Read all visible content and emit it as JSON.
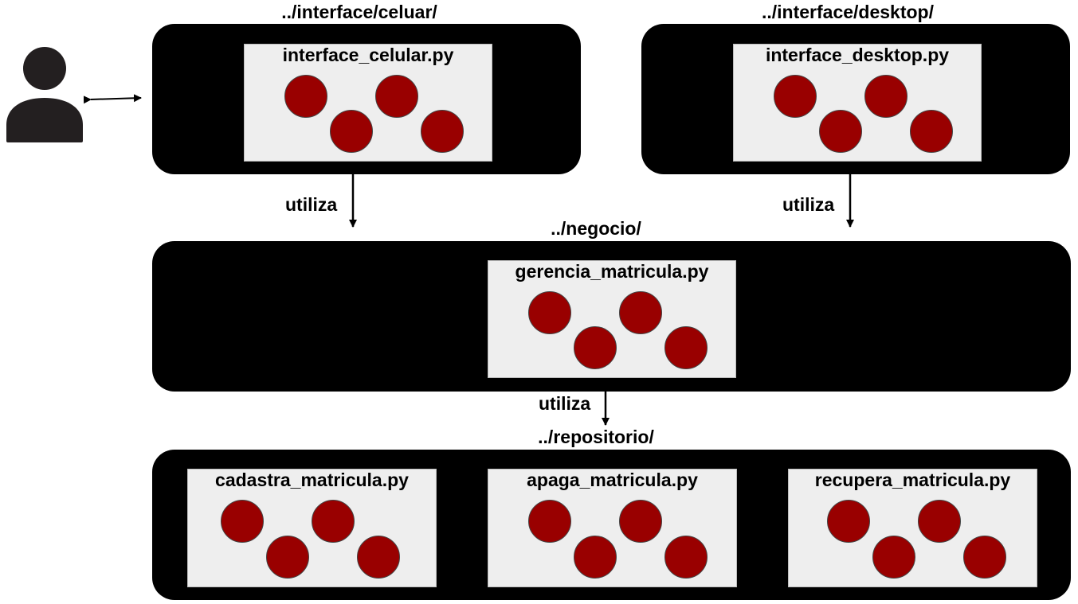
{
  "folders": {
    "celular": "../interface/celuar/",
    "desktop": "../interface/desktop/",
    "negocio": "../negocio/",
    "repositorio": "../repositorio/"
  },
  "modules": {
    "interface_celular": "interface_celular.py",
    "interface_desktop": "interface_desktop.py",
    "gerencia_matricula": "gerencia_matricula.py",
    "cadastra_matricula": "cadastra_matricula.py",
    "apaga_matricula": "apaga_matricula.py",
    "recupera_matricula": "recupera_matricula.py"
  },
  "edges": {
    "utiliza_celular": "utiliza",
    "utiliza_desktop": "utiliza",
    "utiliza_negocio": "utiliza"
  },
  "colors": {
    "layer": "#000000",
    "module_bg": "#eeeeee",
    "dot": "#990000",
    "user": "#231f20"
  }
}
